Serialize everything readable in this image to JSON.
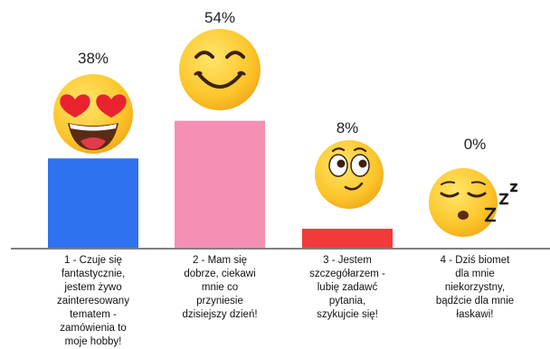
{
  "chart_data": {
    "type": "bar",
    "categories": [
      "1 - Czuje się\nfantastycznie,\njestem żywo\nzainteresowany\ntematem -\nzamówienia to\nmoje hobby!",
      "2 - Mam się\ndobrze, ciekawi\nmnie co\nprzyniesie\ndzisiejszy dzień!",
      "3 - Jestem\nszczegółarzem -\nlubię zadawć\npytania,\nszykujcie się!",
      "4 - Dziś biomet\ndla mnie\nniekorzystny,\nbądźcie dla mnie\nłaskawi!"
    ],
    "values": [
      38,
      54,
      8,
      0
    ],
    "value_labels": [
      "38%",
      "54%",
      "8%",
      "0%"
    ],
    "ylim": [
      0,
      100
    ],
    "colors": [
      "#2f72f0",
      "#f58fb4",
      "#f23a3a",
      "#ffffff"
    ],
    "emoji": [
      "heart-eyes-emoji",
      "smiling-emoji",
      "thinking-emoji",
      "sleeping-emoji"
    ],
    "grid": false
  }
}
